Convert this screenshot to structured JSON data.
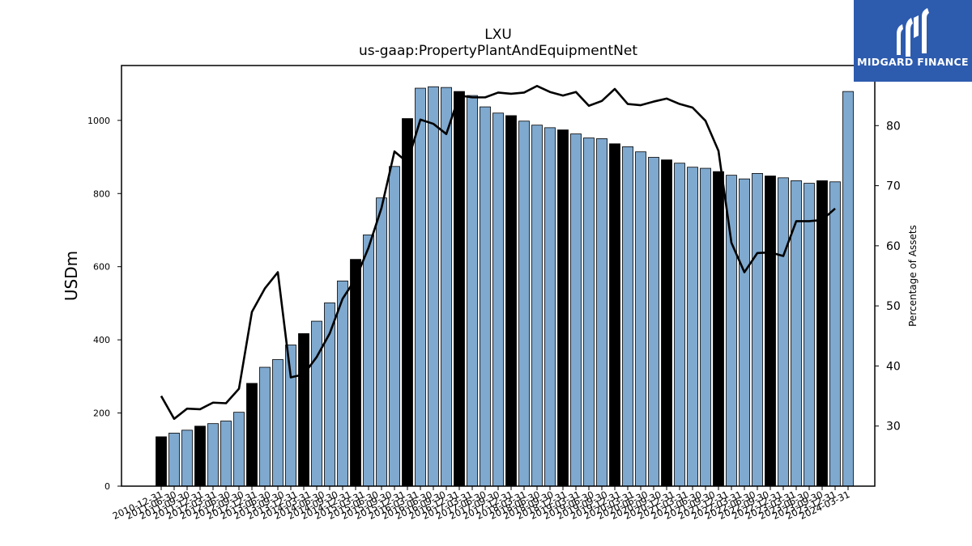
{
  "brand": {
    "name": "MIDGARD FINANCE",
    "bg_color": "#2D5BAE"
  },
  "chart_data": {
    "type": "bar",
    "title": "LXU",
    "subtitle": "us-gaap:PropertyPlantAndEquipmentNet",
    "ylabel": "USDm",
    "ylabel_right": "Percentage of Assets",
    "ylim": [
      0,
      1150
    ],
    "ylim_right": [
      20,
      90
    ],
    "yticks": [
      0,
      200,
      400,
      600,
      800,
      1000
    ],
    "yticks_right": [
      30,
      40,
      50,
      60,
      70,
      80
    ],
    "bar_color": "#7FA9CF",
    "annual_bar_color": "#000000",
    "line_color": "#000000",
    "categories": [
      "2010-12-31",
      "2011-03-31",
      "2011-06-30",
      "2011-09-30",
      "2011-12-31",
      "2012-03-31",
      "2012-06-30",
      "2012-09-30",
      "2012-12-31",
      "2013-03-31",
      "2013-06-30",
      "2013-09-30",
      "2013-12-31",
      "2014-03-31",
      "2014-06-30",
      "2014-09-30",
      "2014-12-31",
      "2015-03-31",
      "2015-06-30",
      "2015-09-30",
      "2015-12-31",
      "2016-03-31",
      "2016-06-30",
      "2016-09-30",
      "2016-12-31",
      "2017-03-31",
      "2017-06-30",
      "2017-09-30",
      "2017-12-31",
      "2018-03-31",
      "2018-06-30",
      "2018-09-30",
      "2018-12-31",
      "2019-03-31",
      "2019-06-30",
      "2019-09-30",
      "2019-12-31",
      "2020-03-31",
      "2020-06-30",
      "2020-09-30",
      "2020-12-31",
      "2021-03-31",
      "2021-06-30",
      "2021-09-30",
      "2021-12-31",
      "2022-03-31",
      "2022-06-30",
      "2022-09-30",
      "2022-12-31",
      "2023-03-31",
      "2023-06-30",
      "2023-09-30",
      "2023-12-31",
      "2024-03-31"
    ],
    "xtick_labels": [
      "2010-12-31",
      "2011-06-30",
      "2011-09-30",
      "2011-12-31",
      "2012-03-31",
      "2012-06-30",
      "2012-09-30",
      "2012-12-31",
      "2013-06-30",
      "2013-09-30",
      "2013-12-31",
      "2014-03-31",
      "2014-06-30",
      "2014-09-30",
      "2014-12-31",
      "2015-03-31",
      "2015-06-30",
      "2015-09-30",
      "2015-12-31",
      "2016-03-31",
      "2016-06-30",
      "2016-09-30",
      "2016-12-31",
      "2017-03-31",
      "2017-06-30",
      "2017-09-30",
      "2017-12-31",
      "2018-03-31",
      "2018-06-30",
      "2018-09-30",
      "2018-12-31",
      "2019-03-31",
      "2019-06-30",
      "2019-09-30",
      "2019-12-31",
      "2020-03-31",
      "2020-06-30",
      "2020-09-30",
      "2020-12-31",
      "2021-03-31",
      "2021-06-30",
      "2021-09-30",
      "2021-12-31",
      "2022-03-31",
      "2022-06-30",
      "2022-09-30",
      "2022-12-31",
      "2023-03-31",
      "2023-06-30",
      "2023-09-30",
      "2023-12-31",
      "2024-03-31"
    ],
    "values": [
      135,
      145,
      153,
      164,
      171,
      178,
      202,
      281,
      325,
      346,
      386,
      417,
      451,
      501,
      561,
      620,
      687,
      788,
      874,
      1005,
      1088,
      1092,
      1090,
      1079,
      1068,
      1037,
      1020,
      1013,
      998,
      987,
      980,
      974,
      963,
      952,
      950,
      936,
      928,
      914,
      899,
      892,
      883,
      872,
      869,
      860,
      850,
      840,
      855,
      848,
      843,
      835,
      828,
      835,
      832,
      1079
    ],
    "annual": [
      true,
      false,
      false,
      true,
      false,
      false,
      false,
      true,
      false,
      false,
      false,
      true,
      false,
      false,
      false,
      true,
      false,
      false,
      false,
      true,
      false,
      false,
      false,
      true,
      false,
      false,
      false,
      true,
      false,
      false,
      false,
      true,
      false,
      false,
      false,
      true,
      false,
      false,
      false,
      true,
      false,
      false,
      false,
      true,
      false,
      false,
      false,
      true,
      false,
      false,
      false,
      true,
      false,
      false
    ],
    "pct_of_assets": [
      35.0,
      31.2,
      32.9,
      32.8,
      33.9,
      33.8,
      36.2,
      49.0,
      52.9,
      55.6,
      38.1,
      38.6,
      41.5,
      45.4,
      51.2,
      54.5,
      59.7,
      66.3,
      75.7,
      73.9,
      81.0,
      80.3,
      78.6,
      85.0,
      84.7,
      84.7,
      85.5,
      85.3,
      85.5,
      86.6,
      85.6,
      85.0,
      85.6,
      83.3,
      84.1,
      86.1,
      83.6,
      83.4,
      84.0,
      84.5,
      83.6,
      83.0,
      80.8,
      75.8,
      60.5,
      55.6,
      58.8,
      58.9,
      58.3,
      64.1,
      64.1,
      64.3,
      66.2,
      null
    ]
  }
}
